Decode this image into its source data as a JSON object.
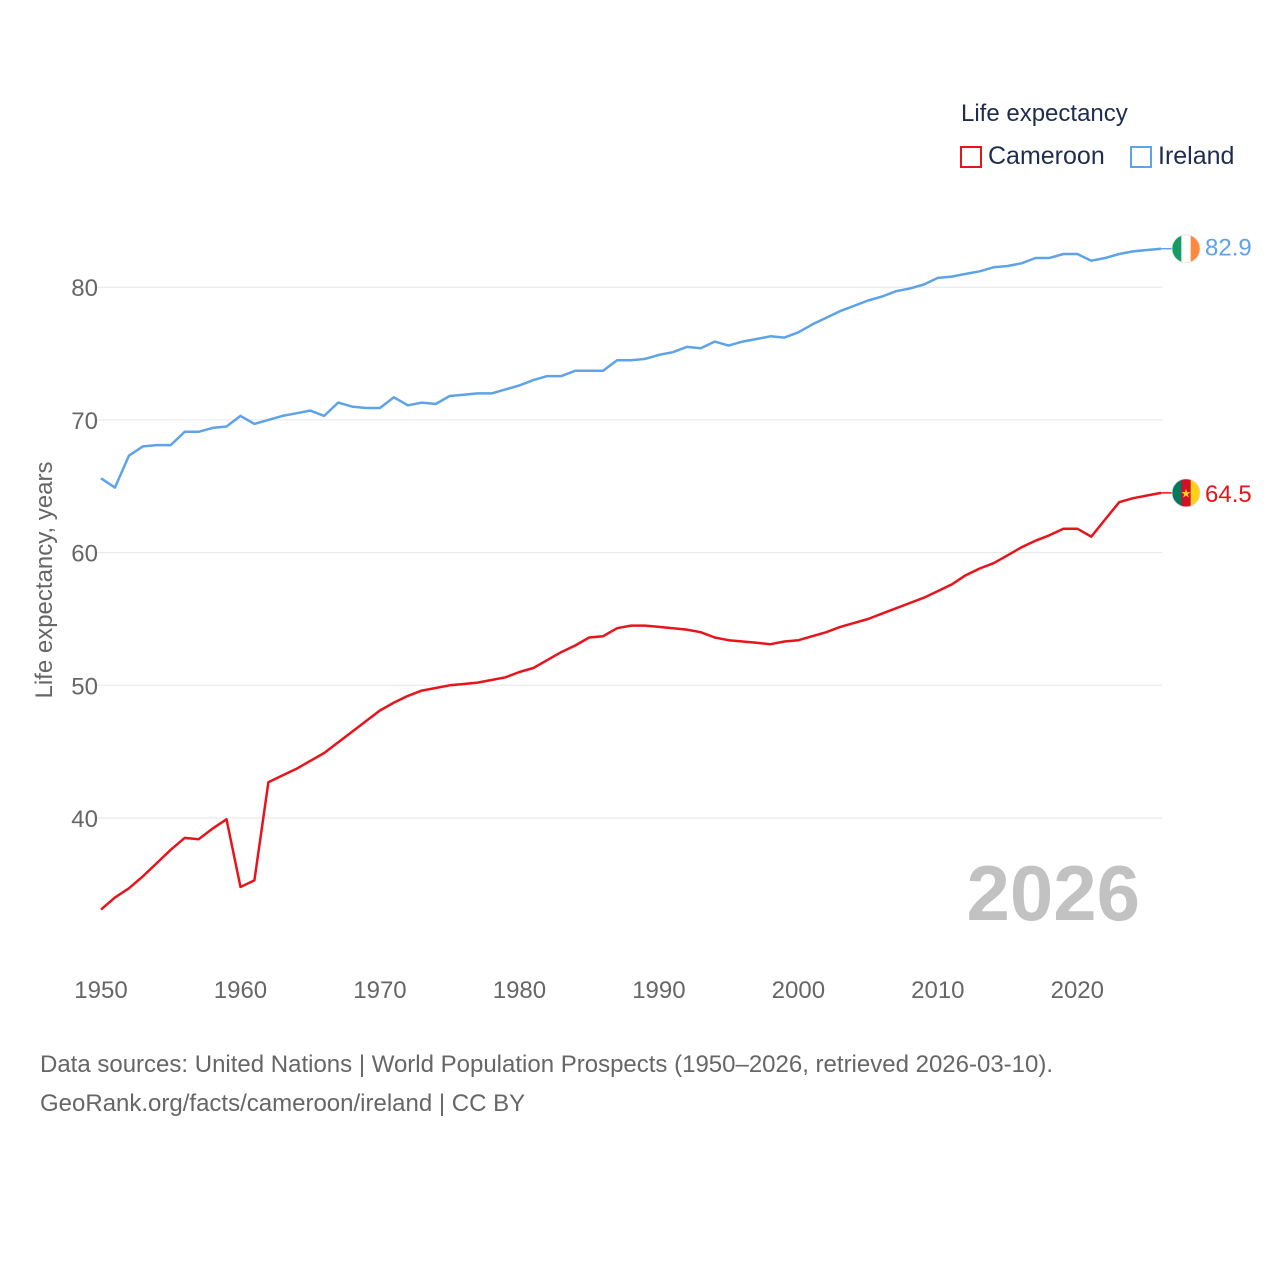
{
  "chart_data": {
    "type": "line",
    "ylabel": "Life expectancy, years",
    "xlim": [
      1950,
      2026
    ],
    "ylim": [
      33,
      85
    ],
    "y_ticks": [
      40,
      50,
      60,
      70,
      80
    ],
    "x_ticks": [
      1950,
      1960,
      1970,
      1980,
      1990,
      2000,
      2010,
      2020
    ],
    "grid": true,
    "legend_title": "Life expectancy",
    "legend_position": "top-right",
    "year_label": "2026",
    "x": [
      1950,
      1951,
      1952,
      1953,
      1954,
      1955,
      1956,
      1957,
      1958,
      1959,
      1960,
      1961,
      1962,
      1963,
      1964,
      1965,
      1966,
      1967,
      1968,
      1969,
      1970,
      1971,
      1972,
      1973,
      1974,
      1975,
      1976,
      1977,
      1978,
      1979,
      1980,
      1981,
      1982,
      1983,
      1984,
      1985,
      1986,
      1987,
      1988,
      1989,
      1990,
      1991,
      1992,
      1993,
      1994,
      1995,
      1996,
      1997,
      1998,
      1999,
      2000,
      2001,
      2002,
      2003,
      2004,
      2005,
      2006,
      2007,
      2008,
      2009,
      2010,
      2011,
      2012,
      2013,
      2014,
      2015,
      2016,
      2017,
      2018,
      2019,
      2020,
      2021,
      2022,
      2023,
      2024,
      2025,
      2026
    ],
    "series": [
      {
        "name": "Cameroon",
        "color": "#e8141c",
        "end_label": "64.5",
        "flag": "cameroon-flag",
        "values": [
          33.1,
          34.0,
          34.7,
          35.6,
          36.6,
          37.6,
          38.5,
          38.4,
          39.2,
          39.9,
          34.8,
          35.3,
          42.7,
          43.2,
          43.7,
          44.3,
          44.9,
          45.7,
          46.5,
          47.3,
          48.1,
          48.7,
          49.2,
          49.6,
          49.8,
          50.0,
          50.1,
          50.2,
          50.4,
          50.6,
          51.0,
          51.3,
          51.9,
          52.5,
          53.0,
          53.6,
          53.7,
          54.3,
          54.5,
          54.5,
          54.4,
          54.3,
          54.2,
          54.0,
          53.6,
          53.4,
          53.3,
          53.2,
          53.1,
          53.3,
          53.4,
          53.7,
          54.0,
          54.4,
          54.7,
          55.0,
          55.4,
          55.8,
          56.2,
          56.6,
          57.1,
          57.6,
          58.3,
          58.8,
          59.2,
          59.8,
          60.4,
          60.9,
          61.3,
          61.8,
          61.8,
          61.2,
          62.5,
          63.8,
          64.1,
          64.3,
          64.5
        ]
      },
      {
        "name": "Ireland",
        "color": "#5ea3e8",
        "end_label": "82.9",
        "flag": "ireland-flag",
        "values": [
          65.6,
          64.9,
          67.3,
          68.0,
          68.1,
          68.1,
          69.1,
          69.1,
          69.4,
          69.5,
          70.3,
          69.7,
          70.0,
          70.3,
          70.5,
          70.7,
          70.3,
          71.3,
          71.0,
          70.9,
          70.9,
          71.7,
          71.1,
          71.3,
          71.2,
          71.8,
          71.9,
          72.0,
          72.0,
          72.3,
          72.6,
          73.0,
          73.3,
          73.3,
          73.7,
          73.7,
          73.7,
          74.5,
          74.5,
          74.6,
          74.9,
          75.1,
          75.5,
          75.4,
          75.9,
          75.6,
          75.9,
          76.1,
          76.3,
          76.2,
          76.6,
          77.2,
          77.7,
          78.2,
          78.6,
          79.0,
          79.3,
          79.7,
          79.9,
          80.2,
          80.7,
          80.8,
          81.0,
          81.2,
          81.5,
          81.6,
          81.8,
          82.2,
          82.2,
          82.5,
          82.5,
          82.0,
          82.2,
          82.5,
          82.7,
          82.8,
          82.9
        ]
      }
    ]
  },
  "source": {
    "line1": "Data sources: United Nations | World Population Prospects (1950–2026, retrieved 2026-03-10).",
    "line2": "GeoRank.org/facts/cameroon/ireland | CC BY"
  }
}
